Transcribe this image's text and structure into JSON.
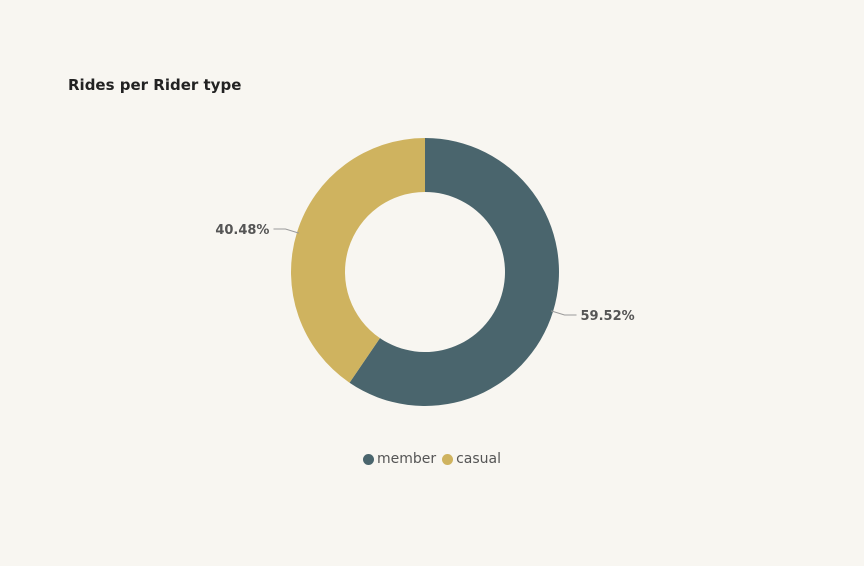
{
  "chart_data": {
    "type": "pie",
    "title": "Rides per Rider type",
    "categories": [
      "member",
      "casual"
    ],
    "values": [
      59.52,
      40.48
    ],
    "value_labels": [
      "59.52%",
      "40.48%"
    ],
    "colors": [
      "#4a656d",
      "#cfb35f"
    ],
    "donut": true,
    "legend": "bottom"
  },
  "legend": {
    "items": [
      {
        "label": "member",
        "color": "#4a656d"
      },
      {
        "label": "casual",
        "color": "#cfb35f"
      }
    ]
  }
}
